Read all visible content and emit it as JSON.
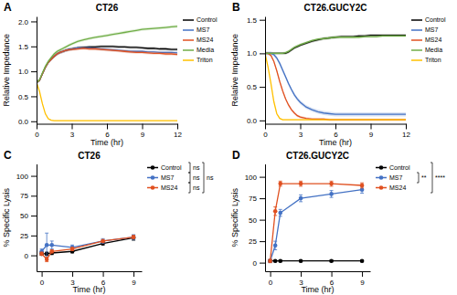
{
  "chart_data": [
    {
      "type": "line",
      "panel_label": "A",
      "title": "CT26",
      "x_label": "Time (hr)",
      "y_label": "Relative Impedance",
      "x": [
        0,
        0.25,
        0.5,
        0.75,
        1.0,
        1.25,
        1.5,
        1.75,
        2.0,
        2.25,
        2.5,
        2.75,
        3.0,
        3.5,
        4.0,
        4.5,
        5.0,
        5.5,
        6.0,
        6.5,
        7.0,
        7.5,
        8.0,
        8.5,
        9.0,
        9.5,
        10.0,
        10.5,
        11.0,
        11.5,
        12.0
      ],
      "series": [
        {
          "name": "Control",
          "color": "#000000",
          "values": [
            0.78,
            0.82,
            0.95,
            1.08,
            1.18,
            1.25,
            1.3,
            1.35,
            1.38,
            1.4,
            1.42,
            1.44,
            1.45,
            1.47,
            1.48,
            1.49,
            1.49,
            1.5,
            1.5,
            1.5,
            1.49,
            1.49,
            1.48,
            1.48,
            1.47,
            1.46,
            1.46,
            1.45,
            1.45,
            1.44,
            1.44
          ],
          "error": 0.03
        },
        {
          "name": "MS7",
          "color": "#4472C4",
          "values": [
            0.78,
            0.82,
            0.95,
            1.08,
            1.18,
            1.24,
            1.3,
            1.35,
            1.38,
            1.4,
            1.42,
            1.44,
            1.45,
            1.47,
            1.47,
            1.47,
            1.46,
            1.45,
            1.44,
            1.43,
            1.42,
            1.41,
            1.4,
            1.4,
            1.4,
            1.39,
            1.39,
            1.38,
            1.38,
            1.38,
            1.37
          ],
          "error": 0.03
        },
        {
          "name": "MS24",
          "color": "#E05020",
          "values": [
            0.78,
            0.82,
            0.95,
            1.08,
            1.18,
            1.24,
            1.3,
            1.35,
            1.38,
            1.4,
            1.42,
            1.43,
            1.44,
            1.45,
            1.46,
            1.45,
            1.45,
            1.44,
            1.43,
            1.42,
            1.41,
            1.4,
            1.39,
            1.38,
            1.38,
            1.37,
            1.36,
            1.36,
            1.35,
            1.35,
            1.34
          ],
          "error": 0.03
        },
        {
          "name": "Media",
          "color": "#70AD47",
          "values": [
            0.78,
            0.83,
            0.97,
            1.1,
            1.2,
            1.28,
            1.35,
            1.4,
            1.43,
            1.46,
            1.49,
            1.52,
            1.55,
            1.6,
            1.63,
            1.66,
            1.68,
            1.7,
            1.72,
            1.74,
            1.76,
            1.78,
            1.8,
            1.82,
            1.84,
            1.85,
            1.86,
            1.87,
            1.88,
            1.89,
            1.9
          ],
          "error": 0.03
        },
        {
          "name": "Triton",
          "color": "#FFC000",
          "values": [
            0.78,
            0.6,
            0.35,
            0.15,
            0.05,
            0.02,
            0.01,
            0.01,
            0.01,
            0.01,
            0.01,
            0.01,
            0.01,
            0.01,
            0.01,
            0.01,
            0.01,
            0.01,
            0.01,
            0.01,
            0.01,
            0.01,
            0.01,
            0.01,
            0.01,
            0.01,
            0.01,
            0.01,
            0.01,
            0.01,
            0.01
          ],
          "error": 0.01
        }
      ],
      "xlim": [
        0,
        12
      ],
      "xticks": [
        0,
        3,
        6,
        9,
        12
      ],
      "ylim": [
        -0.05,
        2.1
      ],
      "yticks": [
        {
          "value": 0,
          "label": "0.0"
        },
        0.5,
        {
          "value": 1,
          "label": "1.0"
        },
        1.5,
        {
          "value": 2,
          "label": "2.0"
        }
      ],
      "grid": false,
      "legend": "right"
    },
    {
      "type": "line",
      "panel_label": "B",
      "title": "CT26.GUCY2C",
      "x_label": "Time (hr)",
      "y_label": "Relative Impedance",
      "x": [
        0,
        0.25,
        0.5,
        0.75,
        1.0,
        1.25,
        1.5,
        1.75,
        2.0,
        2.25,
        2.5,
        2.75,
        3.0,
        3.5,
        4.0,
        4.5,
        5.0,
        5.5,
        6.0,
        6.5,
        7.0,
        7.5,
        8.0,
        8.5,
        9.0,
        9.5,
        10.0,
        10.5,
        11.0,
        11.5,
        12.0
      ],
      "series": [
        {
          "name": "Control",
          "color": "#000000",
          "values": [
            1.0,
            1.0,
            1.0,
            1.0,
            1.0,
            1.0,
            1.0,
            1.0,
            1.02,
            1.05,
            1.08,
            1.1,
            1.12,
            1.15,
            1.18,
            1.2,
            1.22,
            1.23,
            1.24,
            1.25,
            1.25,
            1.25,
            1.26,
            1.26,
            1.27,
            1.27,
            1.27,
            1.27,
            1.27,
            1.27,
            1.27
          ],
          "error": 0.02
        },
        {
          "name": "MS7",
          "color": "#4472C4",
          "values": [
            1.0,
            1.0,
            1.0,
            0.98,
            0.93,
            0.85,
            0.75,
            0.65,
            0.55,
            0.46,
            0.38,
            0.32,
            0.27,
            0.2,
            0.16,
            0.13,
            0.11,
            0.1,
            0.09,
            0.09,
            0.09,
            0.09,
            0.09,
            0.09,
            0.09,
            0.09,
            0.09,
            0.09,
            0.09,
            0.09,
            0.09
          ],
          "error": 0.03
        },
        {
          "name": "MS24",
          "color": "#E05020",
          "values": [
            1.0,
            1.0,
            0.97,
            0.88,
            0.74,
            0.58,
            0.44,
            0.32,
            0.23,
            0.16,
            0.11,
            0.07,
            0.05,
            0.03,
            0.02,
            0.02,
            0.02,
            0.01,
            0.01,
            0.01,
            0.01,
            0.01,
            0.01,
            0.01,
            0.01,
            0.01,
            0.01,
            0.01,
            0.01,
            0.01,
            0.01
          ],
          "error": 0.02
        },
        {
          "name": "Media",
          "color": "#70AD47",
          "values": [
            1.0,
            1.0,
            1.0,
            1.0,
            1.0,
            1.0,
            1.0,
            1.01,
            1.03,
            1.06,
            1.09,
            1.11,
            1.13,
            1.16,
            1.19,
            1.21,
            1.22,
            1.23,
            1.24,
            1.24,
            1.24,
            1.24,
            1.24,
            1.25,
            1.25,
            1.25,
            1.26,
            1.26,
            1.26,
            1.26,
            1.26
          ],
          "error": 0.02
        },
        {
          "name": "Triton",
          "color": "#FFC000",
          "values": [
            1.0,
            0.8,
            0.55,
            0.28,
            0.1,
            0.03,
            0.01,
            0.01,
            0.01,
            0.01,
            0.01,
            0.01,
            0.01,
            0.01,
            0.01,
            0.01,
            0.01,
            0.01,
            0.01,
            0.01,
            0.01,
            0.01,
            0.01,
            0.01,
            0.01,
            0.01,
            0.01,
            0.01,
            0.01,
            0.01,
            0.01
          ],
          "error": 0.01
        }
      ],
      "xlim": [
        0,
        12
      ],
      "xticks": [
        0,
        3,
        6,
        9,
        12
      ],
      "ylim": [
        -0.05,
        1.55
      ],
      "yticks": [
        {
          "value": 0,
          "label": "0.0"
        },
        0.5,
        {
          "value": 1,
          "label": "1.0"
        },
        1.5
      ],
      "grid": false,
      "legend": "right"
    },
    {
      "type": "line",
      "marker": "circle",
      "panel_label": "C",
      "title": "CT26",
      "x_label": "Time (hr)",
      "y_label": "% Specific Lysis",
      "x": [
        0,
        0.5,
        1.0,
        3.0,
        6.0,
        9.0
      ],
      "series": [
        {
          "name": "Control",
          "color": "#000000",
          "values": [
            2,
            2,
            3,
            5,
            15,
            22
          ],
          "errors": [
            2,
            2,
            2,
            2,
            2,
            3
          ]
        },
        {
          "name": "MS7",
          "color": "#4472C4",
          "values": [
            5,
            13,
            13,
            10,
            18,
            23
          ],
          "errors": [
            3,
            15,
            5,
            3,
            3,
            3
          ]
        },
        {
          "name": "MS24",
          "color": "#E05020",
          "values": [
            2,
            -5,
            5,
            8,
            18,
            23
          ],
          "errors": [
            2,
            3,
            2,
            2,
            2,
            2
          ]
        }
      ],
      "xlim": [
        -0.5,
        9.8
      ],
      "xticks": [
        0,
        3,
        6,
        9
      ],
      "ylim": [
        -20,
        115
      ],
      "yticks": [
        0,
        25,
        50,
        75,
        100
      ],
      "annotations": [
        "ns",
        "ns",
        "ns",
        "ns"
      ],
      "grid": false,
      "legend": "right"
    },
    {
      "type": "line",
      "marker": "circle",
      "panel_label": "D",
      "title": "CT26.GUCY2C",
      "x_label": "Time (hr)",
      "y_label": "% Specific Lysis",
      "x": [
        0,
        0.5,
        1.0,
        3.0,
        6.0,
        9.0
      ],
      "series": [
        {
          "name": "Control",
          "color": "#000000",
          "values": [
            2,
            2,
            2,
            2,
            2,
            2
          ],
          "errors": [
            1,
            1,
            1,
            1,
            1,
            1
          ]
        },
        {
          "name": "MS7",
          "color": "#4472C4",
          "values": [
            2,
            20,
            58,
            75,
            80,
            85
          ],
          "errors": [
            2,
            5,
            4,
            4,
            4,
            4
          ]
        },
        {
          "name": "MS24",
          "color": "#E05020",
          "values": [
            2,
            60,
            92,
            92,
            92,
            90
          ],
          "errors": [
            2,
            5,
            3,
            3,
            3,
            3
          ]
        }
      ],
      "xlim": [
        -0.5,
        9.8
      ],
      "xticks": [
        0,
        3,
        6,
        9
      ],
      "ylim": [
        -10,
        115
      ],
      "yticks": [
        0,
        25,
        50,
        75,
        100
      ],
      "annotations": [
        "**",
        "****"
      ],
      "grid": false,
      "legend": "right"
    }
  ]
}
